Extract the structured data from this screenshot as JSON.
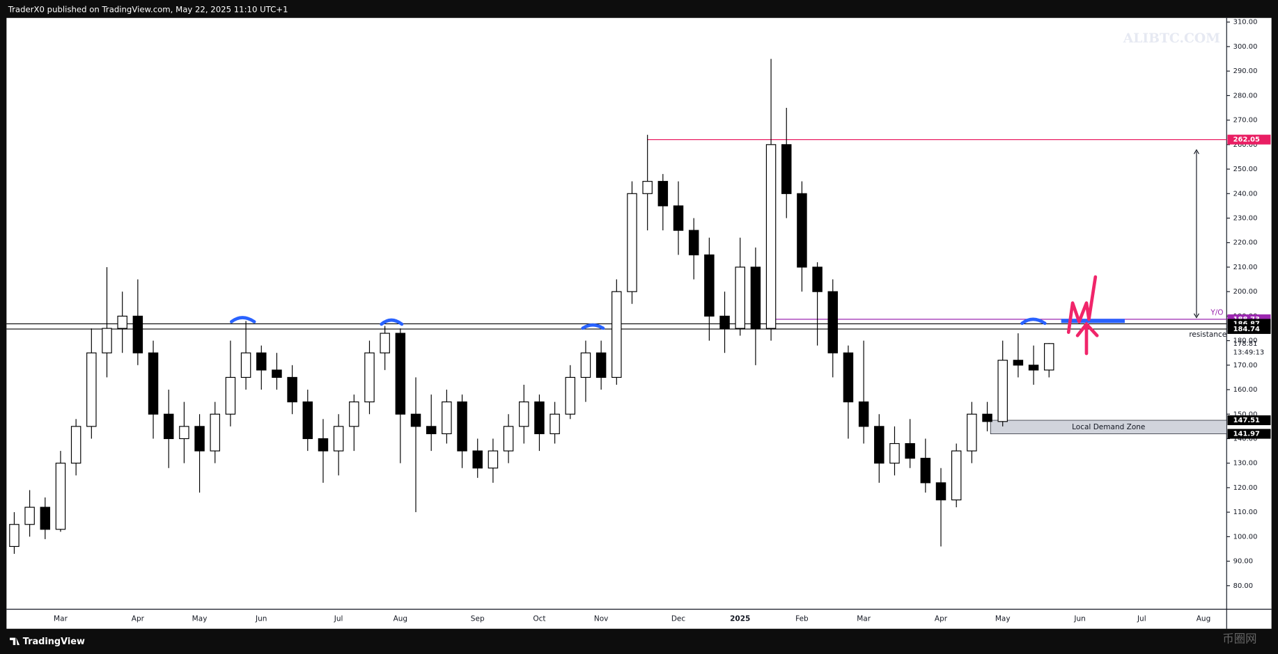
{
  "header": "TraderX0 published on TradingView.com, May 22, 2025 11:10 UTC+1",
  "brand": "TradingView",
  "watermarks": [
    "ALIBTC.COM",
    "币圈网"
  ],
  "chart_data": {
    "type": "candlestick",
    "categories": [
      null,
      null,
      null,
      "Mar",
      null,
      null,
      null,
      null,
      "Apr",
      null,
      null,
      null,
      "May",
      null,
      null,
      null,
      "Jun",
      null,
      null,
      null,
      null,
      "Jul",
      null,
      null,
      null,
      "Aug",
      null,
      null,
      null,
      null,
      "Sep",
      null,
      null,
      null,
      "Oct",
      null,
      null,
      null,
      "Nov",
      null,
      null,
      null,
      null,
      "Dec",
      null,
      null,
      null,
      "2025",
      null,
      null,
      null,
      "Feb",
      null,
      null,
      null,
      "Mar",
      null,
      null,
      null,
      null,
      "Apr",
      null,
      null,
      null,
      "May",
      null,
      null,
      null,
      null,
      "Jun",
      null,
      null,
      null,
      "Jul",
      null,
      null,
      null,
      "Aug",
      null
    ],
    "series": {
      "open": [
        96,
        105,
        112,
        103,
        130,
        145,
        175,
        185,
        190,
        175,
        150,
        140,
        145,
        135,
        150,
        165,
        175,
        168,
        165,
        155,
        140,
        135,
        145,
        155,
        175,
        183,
        150,
        145,
        142,
        155,
        135,
        128,
        135,
        145,
        155,
        142,
        150,
        165,
        175,
        165,
        200,
        240,
        245,
        235,
        225,
        215,
        190,
        185,
        210,
        185,
        260,
        240,
        210,
        200,
        175,
        155,
        145,
        130,
        138,
        132,
        122,
        115,
        135,
        150,
        147,
        172,
        170,
        168
      ],
      "high": [
        110,
        119,
        116,
        135,
        148,
        185,
        210,
        200,
        205,
        180,
        160,
        155,
        150,
        155,
        180,
        188,
        178,
        175,
        170,
        160,
        148,
        150,
        158,
        180,
        186,
        185,
        165,
        158,
        160,
        158,
        140,
        140,
        150,
        162,
        158,
        155,
        170,
        180,
        180,
        205,
        245,
        264,
        248,
        245,
        230,
        222,
        200,
        222,
        218,
        295,
        275,
        245,
        212,
        205,
        178,
        180,
        150,
        145,
        148,
        140,
        128,
        138,
        155,
        155,
        180,
        183,
        178,
        179
      ],
      "low": [
        93,
        100,
        99,
        102,
        125,
        140,
        165,
        175,
        170,
        140,
        128,
        130,
        118,
        130,
        145,
        160,
        160,
        160,
        150,
        135,
        122,
        125,
        135,
        150,
        168,
        130,
        110,
        135,
        138,
        128,
        124,
        122,
        130,
        138,
        135,
        138,
        148,
        155,
        160,
        162,
        195,
        225,
        225,
        215,
        205,
        180,
        175,
        182,
        170,
        180,
        230,
        200,
        178,
        165,
        140,
        138,
        122,
        125,
        128,
        118,
        96,
        112,
        130,
        143,
        145,
        165,
        162,
        165
      ],
      "close": [
        105,
        112,
        103,
        130,
        145,
        175,
        185,
        190,
        175,
        150,
        140,
        145,
        135,
        150,
        165,
        175,
        168,
        165,
        155,
        140,
        135,
        145,
        155,
        175,
        183,
        150,
        145,
        142,
        155,
        135,
        128,
        135,
        145,
        155,
        142,
        150,
        165,
        175,
        165,
        200,
        240,
        245,
        235,
        225,
        215,
        190,
        185,
        210,
        185,
        260,
        240,
        210,
        200,
        175,
        155,
        145,
        130,
        138,
        132,
        122,
        115,
        135,
        150,
        147,
        172,
        170,
        168,
        178.81
      ]
    },
    "up_color": "#ffffff",
    "down_color": "#000000",
    "ylim": [
      70.4,
      311.7
    ],
    "yticks": [
      {
        "value": 80,
        "label": "80.00"
      },
      {
        "value": 90,
        "label": "90.00"
      },
      {
        "value": 100,
        "label": "100.00"
      },
      {
        "value": 110,
        "label": "110.00"
      },
      {
        "value": 120,
        "label": "120.00"
      },
      {
        "value": 130,
        "label": "130.00"
      },
      {
        "value": 140,
        "label": "140.00"
      },
      {
        "value": 150,
        "label": "150.00"
      },
      {
        "value": 160,
        "label": "160.00"
      },
      {
        "value": 170,
        "label": "170.00"
      },
      {
        "value": 180,
        "label": "180.00"
      },
      {
        "value": 190,
        "label": "190.00"
      },
      {
        "value": 200,
        "label": "200.00"
      },
      {
        "value": 210,
        "label": "210.00"
      },
      {
        "value": 220,
        "label": "220.00"
      },
      {
        "value": 230,
        "label": "230.00"
      },
      {
        "value": 240,
        "label": "240.00"
      },
      {
        "value": 250,
        "label": "250.00"
      },
      {
        "value": 260,
        "label": "260.00"
      },
      {
        "value": 270,
        "label": "270.00"
      },
      {
        "value": 280,
        "label": "280.00"
      },
      {
        "value": 290,
        "label": "290.00"
      },
      {
        "value": 300,
        "label": "300.00"
      },
      {
        "value": 310,
        "label": "310.00"
      }
    ],
    "levels": [
      {
        "value": 262.05,
        "color": "#e91e63"
      },
      {
        "value": 188.73,
        "color": "#9c27b0"
      },
      {
        "value": 186.87,
        "color": "#000000"
      },
      {
        "value": 184.74,
        "color": "#000000"
      }
    ],
    "last_price": 178.81,
    "countdown": "13:49:13",
    "annotations": {
      "yo": "Y/O",
      "resistance": "resistance"
    },
    "demand_zone": {
      "label": "Local Demand Zone",
      "top": 147.51,
      "bottom": 141.97
    }
  }
}
